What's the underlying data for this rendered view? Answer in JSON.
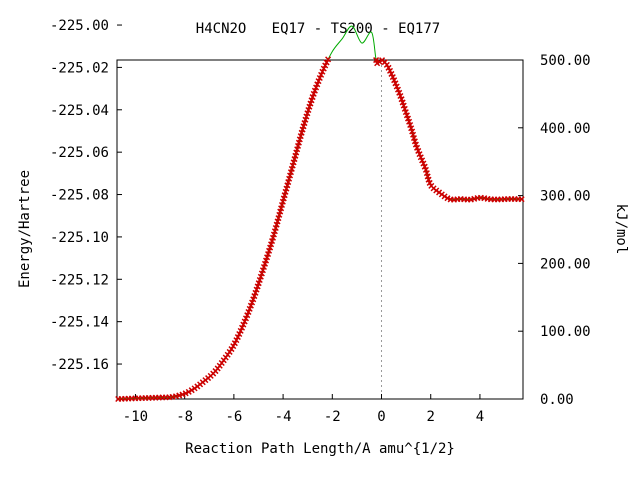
{
  "chart_data": {
    "type": "line",
    "title": "H4CN2O   EQ17 - TS200 - EQ177",
    "xlabel": "Reaction Path Length/A amu^{1/2}",
    "ylabel": "Energy/Hartree",
    "y2label": "kJ/mol",
    "xlim": [
      -10.75,
      5.75
    ],
    "ylim": [
      -225.1765,
      -225.0165
    ],
    "y2lim": [
      0,
      500
    ],
    "x_ticks": [
      -10,
      -8,
      -6,
      -4,
      -2,
      0,
      2,
      4
    ],
    "x_tick_labels": [
      "-10",
      "-8",
      "-6",
      "-4",
      "-2",
      "0",
      "2",
      "4"
    ],
    "y_ticks": [
      -225.16,
      -225.14,
      -225.12,
      -225.1,
      -225.08,
      -225.06,
      -225.04,
      -225.02,
      -225.0
    ],
    "y_tick_labels": [
      "-225.16",
      "-225.14",
      "-225.12",
      "-225.10",
      "-225.08",
      "-225.06",
      "-225.04",
      "-225.02",
      "-225.00"
    ],
    "y2_ticks": [
      0,
      100,
      200,
      300,
      400,
      500
    ],
    "y2_tick_labels": [
      "0.00",
      "100.00",
      "200.00",
      "300.00",
      "400.00",
      "500.00"
    ],
    "ts_marker_x": 0,
    "grid": false,
    "line_color": "#00aa00",
    "marker_color": "#cc0000",
    "series": [
      {
        "x": [
          -10.7,
          -10.0,
          -9.0,
          -8.5,
          -8.0,
          -7.6,
          -7.2,
          -6.8,
          -6.4,
          -6.0,
          -5.6,
          -5.2,
          -4.8,
          -4.4,
          -4.0,
          -3.6,
          -3.2,
          -2.8,
          -2.4,
          -2.0,
          -1.6,
          -1.2,
          -0.8,
          -0.4,
          -0.2,
          0.0,
          0.2,
          0.4,
          0.6,
          0.8,
          1.0,
          1.2,
          1.4,
          1.6,
          1.8,
          2.0,
          2.4,
          2.8,
          3.2,
          3.6,
          4.0,
          4.4,
          4.8,
          5.2,
          5.7
        ],
        "y": [
          -225.1765,
          -225.1762,
          -225.1758,
          -225.1755,
          -225.174,
          -225.1715,
          -225.168,
          -225.164,
          -225.158,
          -225.151,
          -225.141,
          -225.129,
          -225.115,
          -225.1,
          -225.083,
          -225.066,
          -225.049,
          -225.034,
          -225.022,
          -225.0125,
          -225.0065,
          -225.0005,
          -225.0085,
          -225.0035,
          -225.0175,
          -225.0165,
          -225.0185,
          -225.023,
          -225.0285,
          -225.0345,
          -225.0415,
          -225.0485,
          -225.0565,
          -225.0625,
          -225.0682,
          -225.0755,
          -225.0795,
          -225.0823,
          -225.0821,
          -225.0824,
          -225.0815,
          -225.0822,
          -225.0823,
          -225.0821,
          -225.0822
        ]
      }
    ]
  }
}
